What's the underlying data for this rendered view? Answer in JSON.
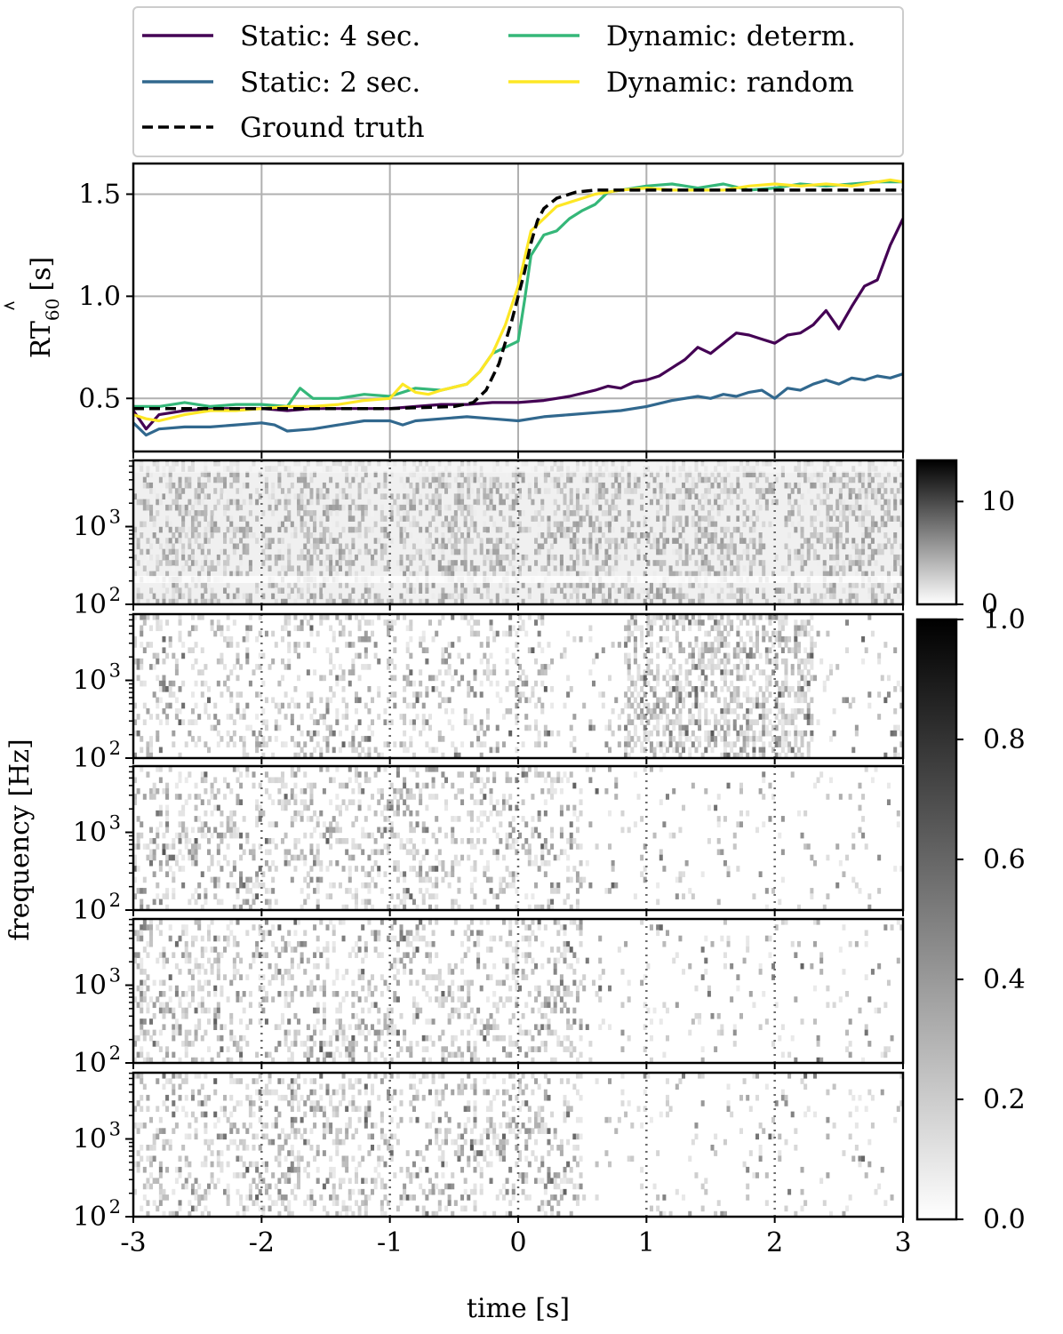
{
  "chart_data": [
    {
      "type": "line",
      "panel": "rt60-estimate",
      "ylabel": "RT60 [s]",
      "ylabel_base": "RT",
      "ylabel_sub": "60",
      "ylabel_unit": "[s]",
      "xlim": [
        -3,
        3
      ],
      "ylim": [
        0.24,
        1.65
      ],
      "xticks": [
        -3,
        -2,
        -1,
        0,
        1,
        2,
        3
      ],
      "yticks": [
        0.5,
        1.0,
        1.5
      ],
      "ytick_labels": [
        "0.5",
        "1.0",
        "1.5"
      ],
      "grid": true,
      "legend_position": "top (above plot)",
      "series": [
        {
          "name": "Static: 4 sec.",
          "color": "#440154",
          "style": "solid",
          "x": [
            -3.0,
            -2.9,
            -2.8,
            -2.6,
            -2.4,
            -2.2,
            -2.0,
            -1.8,
            -1.6,
            -1.4,
            -1.2,
            -1.0,
            -0.8,
            -0.6,
            -0.4,
            -0.2,
            0.0,
            0.2,
            0.4,
            0.6,
            0.7,
            0.8,
            0.9,
            1.0,
            1.1,
            1.2,
            1.3,
            1.4,
            1.5,
            1.6,
            1.7,
            1.8,
            1.9,
            2.0,
            2.1,
            2.2,
            2.3,
            2.4,
            2.5,
            2.6,
            2.7,
            2.8,
            2.9,
            3.0
          ],
          "y": [
            0.44,
            0.35,
            0.42,
            0.44,
            0.45,
            0.45,
            0.45,
            0.44,
            0.45,
            0.45,
            0.45,
            0.45,
            0.46,
            0.47,
            0.47,
            0.48,
            0.48,
            0.49,
            0.51,
            0.54,
            0.56,
            0.55,
            0.58,
            0.59,
            0.61,
            0.65,
            0.69,
            0.75,
            0.72,
            0.77,
            0.82,
            0.81,
            0.79,
            0.77,
            0.81,
            0.82,
            0.86,
            0.93,
            0.84,
            0.95,
            1.05,
            1.08,
            1.25,
            1.38
          ]
        },
        {
          "name": "Static: 2 sec.",
          "color": "#31688e",
          "style": "solid",
          "x": [
            -3.0,
            -2.9,
            -2.8,
            -2.6,
            -2.4,
            -2.2,
            -2.0,
            -1.9,
            -1.8,
            -1.6,
            -1.4,
            -1.2,
            -1.0,
            -0.9,
            -0.8,
            -0.6,
            -0.4,
            -0.2,
            0.0,
            0.2,
            0.4,
            0.6,
            0.8,
            1.0,
            1.2,
            1.4,
            1.5,
            1.6,
            1.7,
            1.8,
            1.9,
            2.0,
            2.1,
            2.2,
            2.3,
            2.4,
            2.5,
            2.6,
            2.7,
            2.8,
            2.9,
            3.0
          ],
          "y": [
            0.38,
            0.32,
            0.35,
            0.36,
            0.36,
            0.37,
            0.38,
            0.37,
            0.34,
            0.35,
            0.37,
            0.39,
            0.39,
            0.37,
            0.39,
            0.4,
            0.41,
            0.4,
            0.39,
            0.41,
            0.42,
            0.43,
            0.44,
            0.46,
            0.49,
            0.51,
            0.5,
            0.52,
            0.51,
            0.53,
            0.54,
            0.5,
            0.55,
            0.54,
            0.57,
            0.59,
            0.57,
            0.6,
            0.59,
            0.61,
            0.6,
            0.62
          ]
        },
        {
          "name": "Dynamic: determ.",
          "color": "#35b779",
          "style": "solid",
          "x": [
            -3.0,
            -2.8,
            -2.6,
            -2.4,
            -2.2,
            -2.0,
            -1.8,
            -1.7,
            -1.6,
            -1.4,
            -1.2,
            -1.0,
            -0.8,
            -0.6,
            -0.4,
            -0.3,
            -0.2,
            -0.1,
            0.0,
            0.05,
            0.1,
            0.2,
            0.3,
            0.4,
            0.5,
            0.6,
            0.7,
            0.8,
            1.0,
            1.2,
            1.4,
            1.6,
            1.8,
            2.0,
            2.2,
            2.4,
            2.6,
            2.8,
            3.0
          ],
          "y": [
            0.46,
            0.46,
            0.48,
            0.46,
            0.47,
            0.47,
            0.46,
            0.55,
            0.5,
            0.5,
            0.52,
            0.51,
            0.55,
            0.54,
            0.57,
            0.63,
            0.72,
            0.75,
            0.78,
            0.98,
            1.2,
            1.3,
            1.32,
            1.38,
            1.42,
            1.45,
            1.51,
            1.52,
            1.54,
            1.55,
            1.53,
            1.55,
            1.52,
            1.53,
            1.55,
            1.54,
            1.55,
            1.56,
            1.56
          ]
        },
        {
          "name": "Dynamic: random",
          "color": "#fde725",
          "style": "solid",
          "x": [
            -3.0,
            -2.9,
            -2.8,
            -2.6,
            -2.4,
            -2.2,
            -2.0,
            -1.8,
            -1.6,
            -1.4,
            -1.2,
            -1.0,
            -0.9,
            -0.8,
            -0.7,
            -0.6,
            -0.4,
            -0.3,
            -0.2,
            -0.1,
            0.0,
            0.1,
            0.2,
            0.3,
            0.4,
            0.5,
            0.6,
            0.7,
            0.8,
            1.0,
            1.2,
            1.4,
            1.6,
            1.8,
            2.0,
            2.2,
            2.4,
            2.6,
            2.8,
            2.9,
            3.0
          ],
          "y": [
            0.42,
            0.4,
            0.39,
            0.42,
            0.44,
            0.44,
            0.45,
            0.46,
            0.46,
            0.47,
            0.49,
            0.5,
            0.57,
            0.53,
            0.52,
            0.54,
            0.57,
            0.63,
            0.72,
            0.86,
            1.05,
            1.32,
            1.38,
            1.44,
            1.46,
            1.48,
            1.5,
            1.51,
            1.52,
            1.53,
            1.52,
            1.52,
            1.52,
            1.54,
            1.55,
            1.54,
            1.55,
            1.54,
            1.56,
            1.57,
            1.56
          ]
        },
        {
          "name": "Ground truth",
          "color": "#000000",
          "style": "dashed",
          "x": [
            -3.0,
            -2.0,
            -1.0,
            -0.5,
            -0.35,
            -0.25,
            -0.15,
            -0.05,
            0.0,
            0.05,
            0.1,
            0.15,
            0.2,
            0.3,
            0.45,
            0.6,
            1.0,
            2.0,
            3.0
          ],
          "y": [
            0.45,
            0.45,
            0.45,
            0.46,
            0.48,
            0.54,
            0.67,
            0.88,
            1.0,
            1.12,
            1.26,
            1.37,
            1.43,
            1.48,
            1.51,
            1.52,
            1.52,
            1.52,
            1.52
          ]
        }
      ]
    },
    {
      "type": "heatmap",
      "panel": "spectrogram-top",
      "ylabel": "frequency [Hz]",
      "yticks": [
        100,
        1000
      ],
      "xlim": [
        -3,
        3
      ],
      "colorbar": {
        "ticks": [
          0,
          10
        ],
        "range": [
          0,
          14
        ],
        "colormap": "gray_r"
      },
      "event_lines_x": [
        -2,
        -1,
        0,
        1,
        2
      ]
    },
    {
      "type": "heatmap",
      "panel": "spectrogram-stack",
      "count": 4,
      "xlabel": "time [s]",
      "xticks": [
        -3,
        -2,
        -1,
        0,
        1,
        2,
        3
      ],
      "xtick_labels": [
        "-3",
        "-2",
        "-1",
        "0",
        "1",
        "2",
        "3"
      ],
      "yticks": [
        100,
        1000
      ],
      "colorbar": {
        "ticks": [
          0.0,
          0.2,
          0.4,
          0.6,
          0.8,
          1.0
        ],
        "tick_labels": [
          "0.0",
          "0.2",
          "0.4",
          "0.6",
          "0.8",
          "1.0"
        ],
        "range": [
          0,
          1
        ],
        "colormap": "gray_r"
      },
      "event_lines_x": [
        -2,
        -1,
        0,
        1,
        2
      ]
    }
  ],
  "xlabel": "time [s]",
  "freq_ylabel": "frequency [Hz]",
  "freq_tick_base": "10",
  "freq_tick_exps": [
    "2",
    "3"
  ],
  "cbar1_tick_labels": [
    "0",
    "10"
  ]
}
